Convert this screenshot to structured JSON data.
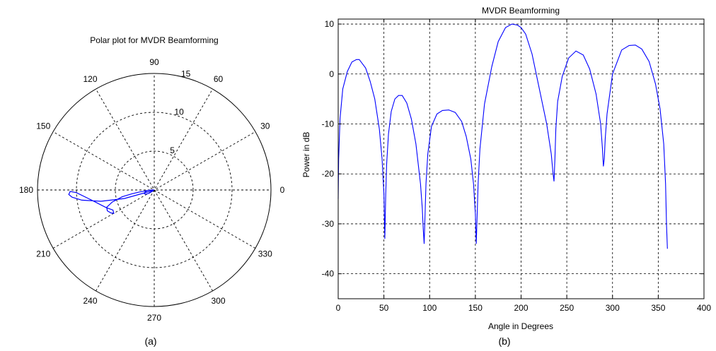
{
  "captions": {
    "a": "(a)",
    "b": "(b)"
  },
  "chart_data": [
    {
      "type": "polar",
      "title": "Polar plot for MVDR Beamforming",
      "rmax": 15,
      "radial_ticks": [
        "5",
        "10",
        "15"
      ],
      "angle_ticks": [
        "0",
        "30",
        "60",
        "90",
        "120",
        "150",
        "180",
        "210",
        "240",
        "270",
        "300",
        "330"
      ],
      "colors": {
        "series": "#0000ff",
        "grid": "#000000"
      },
      "series": [
        {
          "theta_deg": [
            200,
            196,
            192,
            188,
            185,
            183,
            181,
            182,
            190,
            200,
            206,
            210,
            208,
            204,
            200,
            196,
            192,
            190,
            188,
            185,
            182,
            180,
            181,
            184,
            188,
            192,
            196,
            200,
            204,
            208,
            212,
            215,
            212,
            205,
            200
          ],
          "r": [
            0.3,
            4.0,
            7.0,
            9.4,
            10.6,
            11.0,
            10.8,
            10.0,
            8.0,
            6.6,
            5.9,
            6.0,
            6.3,
            6.6,
            6.5,
            5.6,
            4.2,
            3.0,
            2.0,
            1.0,
            0.3,
            0.0,
            0.5,
            0.8,
            1.0,
            1.2,
            1.3,
            1.35,
            1.3,
            1.1,
            0.8,
            0.3,
            0.2,
            0.1,
            0.3
          ]
        }
      ]
    },
    {
      "type": "line",
      "title": "MVDR Beamforming",
      "xlabel": "Angle in Degrees",
      "ylabel": "Power in dB",
      "xlim": [
        0,
        400
      ],
      "ylim": [
        -45,
        11
      ],
      "xticks": [
        0,
        50,
        100,
        150,
        200,
        250,
        300,
        350,
        400
      ],
      "yticks": [
        -40,
        -30,
        -20,
        -10,
        0,
        10
      ],
      "grid": true,
      "colors": {
        "series": "#0000ff"
      },
      "series": [
        {
          "x": [
            0,
            0.5,
            2,
            5,
            10,
            15,
            20,
            23,
            30,
            35,
            40,
            45,
            48,
            50,
            51,
            52,
            53,
            55,
            58,
            62,
            66,
            70,
            75,
            80,
            85,
            90,
            92,
            93,
            94,
            95,
            96,
            98,
            102,
            108,
            114,
            121,
            128,
            135,
            140,
            145,
            148,
            150,
            151,
            152,
            153,
            155,
            160,
            168,
            175,
            183,
            190,
            196,
            200,
            205,
            212,
            220,
            228,
            233,
            235,
            236,
            237,
            238,
            240,
            245,
            252,
            260,
            268,
            275,
            282,
            287,
            289,
            290,
            291,
            292,
            294,
            300,
            310,
            318,
            325,
            332,
            340,
            347,
            352,
            356,
            358,
            359,
            360
          ],
          "y": [
            -25,
            -17,
            -9,
            -3,
            0.5,
            2.4,
            2.9,
            2.9,
            1.2,
            -1.5,
            -5,
            -11,
            -17,
            -24,
            -33,
            -24,
            -18,
            -12,
            -7.5,
            -5,
            -4.3,
            -4.3,
            -5.8,
            -9,
            -14,
            -22,
            -27,
            -31,
            -34,
            -28,
            -22,
            -16,
            -10.5,
            -8,
            -7.3,
            -7.2,
            -7.7,
            -9.5,
            -12.5,
            -17,
            -22,
            -28,
            -34,
            -28,
            -22,
            -15,
            -6,
            1.5,
            6.5,
            9.3,
            10,
            9.8,
            9.3,
            8,
            4,
            -3,
            -10,
            -16,
            -20,
            -21.5,
            -17,
            -11,
            -5.5,
            -0.5,
            3.2,
            4.6,
            3.8,
            1,
            -4,
            -10,
            -15,
            -18.5,
            -17,
            -13,
            -8,
            0,
            4.8,
            5.7,
            5.8,
            5,
            2.5,
            -2,
            -7,
            -14,
            -22,
            -30,
            -35
          ]
        }
      ]
    }
  ]
}
